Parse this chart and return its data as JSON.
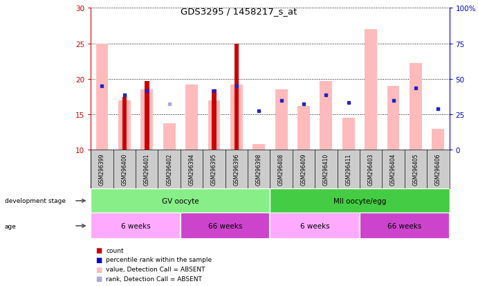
{
  "title": "GDS3295 / 1458217_s_at",
  "samples": [
    "GSM296399",
    "GSM296400",
    "GSM296401",
    "GSM296402",
    "GSM296394",
    "GSM296395",
    "GSM296396",
    "GSM296398",
    "GSM296408",
    "GSM296409",
    "GSM296410",
    "GSM296411",
    "GSM296403",
    "GSM296404",
    "GSM296405",
    "GSM296406"
  ],
  "pink_bar_values": [
    25.0,
    17.0,
    18.5,
    13.7,
    19.2,
    17.0,
    19.2,
    10.8,
    18.5,
    16.2,
    19.7,
    14.5,
    27.0,
    19.0,
    22.2,
    13.0
  ],
  "blue_dot_values": [
    19.0,
    17.7,
    18.3,
    null,
    null,
    18.3,
    19.0,
    15.5,
    17.0,
    16.5,
    17.7,
    16.7,
    null,
    17.0,
    18.7,
    15.8
  ],
  "light_blue_dot_values": [
    null,
    null,
    null,
    16.5,
    null,
    null,
    null,
    null,
    null,
    null,
    null,
    null,
    null,
    null,
    null,
    null
  ],
  "red_bar_present": [
    false,
    true,
    true,
    false,
    false,
    true,
    true,
    false,
    false,
    false,
    false,
    false,
    false,
    false,
    false,
    false
  ],
  "red_bar_heights": [
    0,
    17.5,
    19.7,
    0,
    0,
    18.5,
    25.0,
    0,
    0,
    0,
    0,
    0,
    0,
    0,
    0,
    0
  ],
  "ylim_left": [
    10,
    30
  ],
  "ylim_right": [
    0,
    100
  ],
  "yticks_left": [
    10,
    15,
    20,
    25,
    30
  ],
  "yticks_right": [
    0,
    25,
    50,
    75,
    100
  ],
  "development_stage_groups": [
    {
      "label": "GV oocyte",
      "start": 0,
      "end": 7,
      "color": "#88ee88"
    },
    {
      "label": "MII oocyte/egg",
      "start": 8,
      "end": 15,
      "color": "#44cc44"
    }
  ],
  "age_groups": [
    {
      "label": "6 weeks",
      "start": 0,
      "end": 3,
      "color": "#ffaaff"
    },
    {
      "label": "66 weeks",
      "start": 4,
      "end": 7,
      "color": "#cc44cc"
    },
    {
      "label": "6 weeks",
      "start": 8,
      "end": 11,
      "color": "#ffaaff"
    },
    {
      "label": "66 weeks",
      "start": 12,
      "end": 15,
      "color": "#cc44cc"
    }
  ],
  "legend_items": [
    {
      "label": "count",
      "color": "#cc0000"
    },
    {
      "label": "percentile rank within the sample",
      "color": "#0000cc"
    },
    {
      "label": "value, Detection Call = ABSENT",
      "color": "#ffbbbb"
    },
    {
      "label": "rank, Detection Call = ABSENT",
      "color": "#aaaadd"
    }
  ],
  "pink_bar_color": "#ffbbbb",
  "red_bar_color": "#cc0000",
  "blue_dot_color": "#2222cc",
  "light_blue_color": "#aaaadd",
  "left_axis_color": "#cc0000",
  "right_axis_color": "#0000cc",
  "label_bg_color": "#cccccc",
  "dev_stage_label": "development stage",
  "age_label": "age"
}
